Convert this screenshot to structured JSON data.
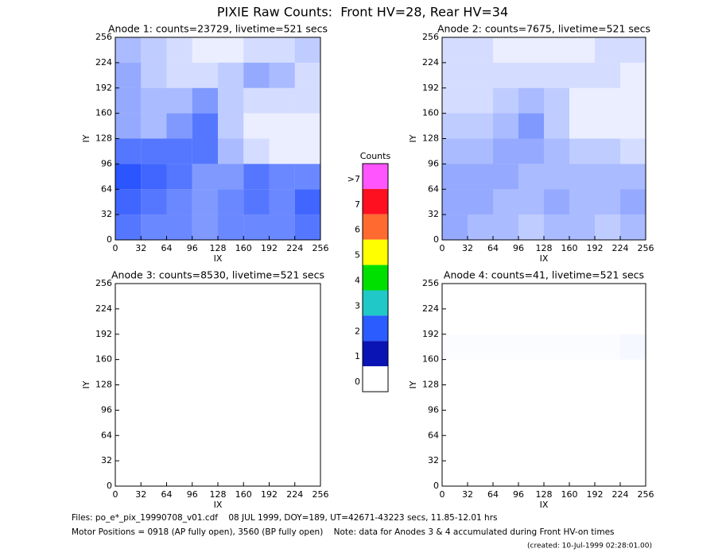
{
  "chart_data": {
    "type": "heatmap",
    "title": "PIXIE Raw Counts:  Front HV=28, Rear HV=34",
    "panels": [
      {
        "title": "Anode 1: counts=23729, livetime=521 secs",
        "xlabel": "IX",
        "ylabel": "IY",
        "xlim": [
          0,
          256
        ],
        "ylim": [
          0,
          256
        ],
        "xticks": [
          0,
          32,
          64,
          96,
          128,
          160,
          192,
          224,
          256
        ],
        "yticks": [
          0,
          32,
          64,
          96,
          128,
          160,
          192,
          224,
          256
        ],
        "density": [
          [
            40,
            35,
            35,
            30,
            35,
            35,
            35,
            40
          ],
          [
            45,
            40,
            35,
            30,
            35,
            40,
            35,
            45
          ],
          [
            50,
            45,
            40,
            30,
            30,
            40,
            35,
            35
          ],
          [
            40,
            40,
            40,
            40,
            20,
            10,
            5,
            5
          ],
          [
            25,
            20,
            30,
            40,
            15,
            5,
            5,
            5
          ],
          [
            25,
            20,
            20,
            30,
            15,
            10,
            10,
            10
          ],
          [
            25,
            15,
            10,
            10,
            15,
            25,
            20,
            10
          ],
          [
            20,
            15,
            10,
            5,
            5,
            10,
            10,
            15
          ]
        ]
      },
      {
        "title": "Anode 2: counts=7675, livetime=521 secs",
        "xlabel": "IX",
        "ylabel": "IY",
        "xlim": [
          0,
          256
        ],
        "ylim": [
          0,
          256
        ],
        "xticks": [
          0,
          32,
          64,
          96,
          128,
          160,
          192,
          224,
          256
        ],
        "yticks": [
          0,
          32,
          64,
          96,
          128,
          160,
          192,
          224,
          256
        ],
        "density": [
          [
            25,
            20,
            20,
            15,
            20,
            20,
            15,
            20
          ],
          [
            25,
            25,
            20,
            20,
            25,
            20,
            20,
            25
          ],
          [
            25,
            25,
            25,
            20,
            20,
            20,
            20,
            20
          ],
          [
            20,
            20,
            25,
            25,
            20,
            15,
            15,
            10
          ],
          [
            15,
            15,
            20,
            30,
            15,
            5,
            5,
            5
          ],
          [
            10,
            10,
            15,
            20,
            15,
            5,
            5,
            5
          ],
          [
            10,
            10,
            10,
            10,
            10,
            10,
            10,
            5
          ],
          [
            10,
            10,
            5,
            5,
            5,
            5,
            10,
            10
          ]
        ]
      },
      {
        "title": "Anode 3: counts=8530, livetime=521 secs",
        "xlabel": "IX",
        "ylabel": "IY",
        "xlim": [
          0,
          256
        ],
        "ylim": [
          0,
          256
        ],
        "xticks": [
          0,
          32,
          64,
          96,
          128,
          160,
          192,
          224,
          256
        ],
        "yticks": [
          0,
          32,
          64,
          96,
          128,
          160,
          192,
          224,
          256
        ],
        "density": [
          [
            0,
            0,
            0,
            0,
            0,
            0,
            0,
            0
          ],
          [
            0,
            0,
            0,
            0,
            0,
            0,
            0,
            0
          ],
          [
            0,
            0,
            0,
            0,
            0,
            0,
            0,
            0
          ],
          [
            0,
            0,
            0,
            0,
            0,
            0,
            0,
            0
          ],
          [
            0,
            0,
            0,
            0,
            0,
            0,
            0,
            0
          ],
          [
            0,
            0,
            0,
            0,
            0,
            0,
            0,
            0
          ],
          [
            0,
            0,
            0,
            0,
            0,
            0,
            0,
            0
          ],
          [
            0,
            0,
            0,
            0,
            0,
            0,
            0,
            0
          ]
        ]
      },
      {
        "title": "Anode 4: counts=41, livetime=521 secs",
        "xlabel": "IX",
        "ylabel": "IY",
        "xlim": [
          0,
          256
        ],
        "ylim": [
          0,
          256
        ],
        "xticks": [
          0,
          32,
          64,
          96,
          128,
          160,
          192,
          224,
          256
        ],
        "yticks": [
          0,
          32,
          64,
          96,
          128,
          160,
          192,
          224,
          256
        ],
        "density": [
          [
            0,
            0,
            0,
            0,
            0,
            0,
            0,
            0
          ],
          [
            0,
            0,
            0,
            0,
            0,
            0,
            0,
            0
          ],
          [
            0,
            0,
            0,
            0,
            0,
            0,
            0,
            0
          ],
          [
            0,
            0,
            0,
            0,
            0,
            0,
            0,
            0
          ],
          [
            0,
            0,
            0,
            0,
            0,
            0,
            0,
            0
          ],
          [
            1,
            1,
            1,
            1,
            1,
            1,
            1,
            2
          ],
          [
            0,
            0,
            0,
            0,
            0,
            0,
            0,
            0
          ],
          [
            0,
            0,
            0,
            0,
            0,
            0,
            0,
            0
          ]
        ]
      }
    ],
    "color": "#0033ff",
    "colorbar": {
      "title": "Counts",
      "levels": [
        {
          "label": ">7",
          "color": "#ff55ff"
        },
        {
          "label": "7",
          "color": "#ff1020"
        },
        {
          "label": "6",
          "color": "#ff6a30"
        },
        {
          "label": "5",
          "color": "#ffff00"
        },
        {
          "label": "4",
          "color": "#00e000"
        },
        {
          "label": "3",
          "color": "#20c8c8"
        },
        {
          "label": "2",
          "color": "#2a5cff"
        },
        {
          "label": "1",
          "color": "#0a14b4"
        },
        {
          "label": "0",
          "color": "#ffffff"
        }
      ]
    },
    "footer": [
      "Files: po_e*_pix_19990708_v01.cdf    08 JUL 1999, DOY=189, UT=42671-43223 secs, 11.85-12.01 hrs",
      "Motor Positions = 0918 (AP fully open), 3560 (BP fully open)    Note: data for Anodes 3 & 4 accumulated during Front HV-on times"
    ],
    "created": "(created: 10-Jul-1999 02:28:01.00)"
  }
}
